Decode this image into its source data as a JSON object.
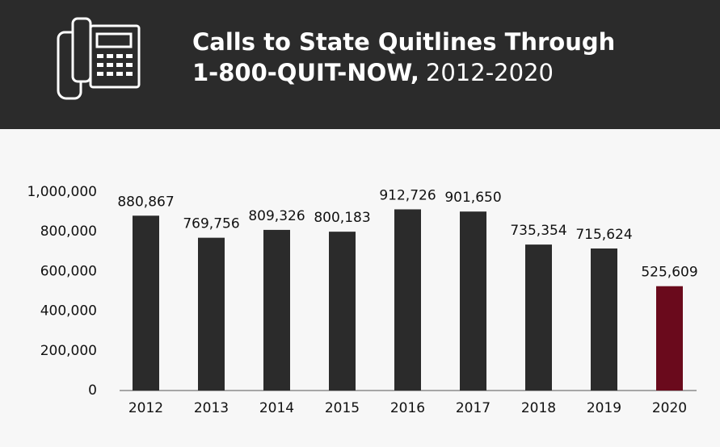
{
  "chart_data": {
    "type": "bar",
    "title": "Calls to State Quitlines Through",
    "title_line2": "1-800-QUIT-NOW,",
    "subtitle": "2012-2020",
    "categories": [
      "2012",
      "2013",
      "2014",
      "2015",
      "2016",
      "2017",
      "2018",
      "2019",
      "2020"
    ],
    "values": [
      880867,
      769756,
      809326,
      800183,
      912726,
      901650,
      735354,
      715624,
      525609
    ],
    "value_labels": [
      "880,867",
      "769,756",
      "809,326",
      "800,183",
      "912,726",
      "901,650",
      "735,354",
      "715,624",
      "525,609"
    ],
    "colors": [
      "#2b2b2b",
      "#2b2b2b",
      "#2b2b2b",
      "#2b2b2b",
      "#2b2b2b",
      "#2b2b2b",
      "#2b2b2b",
      "#2b2b2b",
      "#6a0a1c"
    ],
    "ylim": [
      0,
      1000000
    ],
    "yticks": [
      0,
      {
        "value": 200000,
        "label": "200,000"
      },
      {
        "value": 400000,
        "label": "400,000"
      },
      {
        "value": 600000,
        "label": "600,000"
      },
      {
        "value": 800000,
        "label": "800,000"
      },
      {
        "value": 1000000,
        "label": "1,000,000"
      }
    ],
    "grid": false
  }
}
